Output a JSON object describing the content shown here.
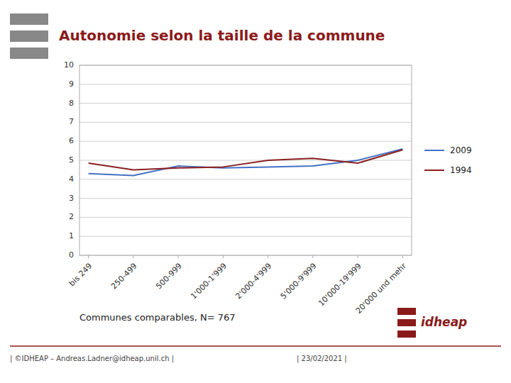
{
  "chart_data": {
    "type": "line",
    "title": "Autonomie selon la taille de la commune",
    "subtitle": "Communes comparables, N= 767",
    "categories": [
      "bis 249",
      "250-499",
      "500-999",
      "1'000-1'999",
      "2'000-4'999",
      "5'000-9'999",
      "10'000-19'999",
      "20'000 und mehr"
    ],
    "series": [
      {
        "name": "2009",
        "color": "#4472C4",
        "values": [
          4.3,
          4.2,
          4.7,
          4.6,
          4.65,
          4.7,
          5.0,
          5.6
        ]
      },
      {
        "name": "1994",
        "color": "#8B2020",
        "values": [
          4.85,
          4.5,
          4.6,
          4.65,
          5.0,
          5.1,
          4.85,
          5.55
        ]
      }
    ],
    "ylim": [
      0,
      10
    ],
    "yticks": [
      0,
      1,
      2,
      3,
      4,
      5,
      6,
      7,
      8,
      9,
      10
    ],
    "grid": true,
    "legend": "right",
    "annotations": [
      "| ©IDHEAP – Andreas.Ladner@idheap.unil.ch |",
      "| 23/02/2021 |",
      "idheap"
    ]
  }
}
